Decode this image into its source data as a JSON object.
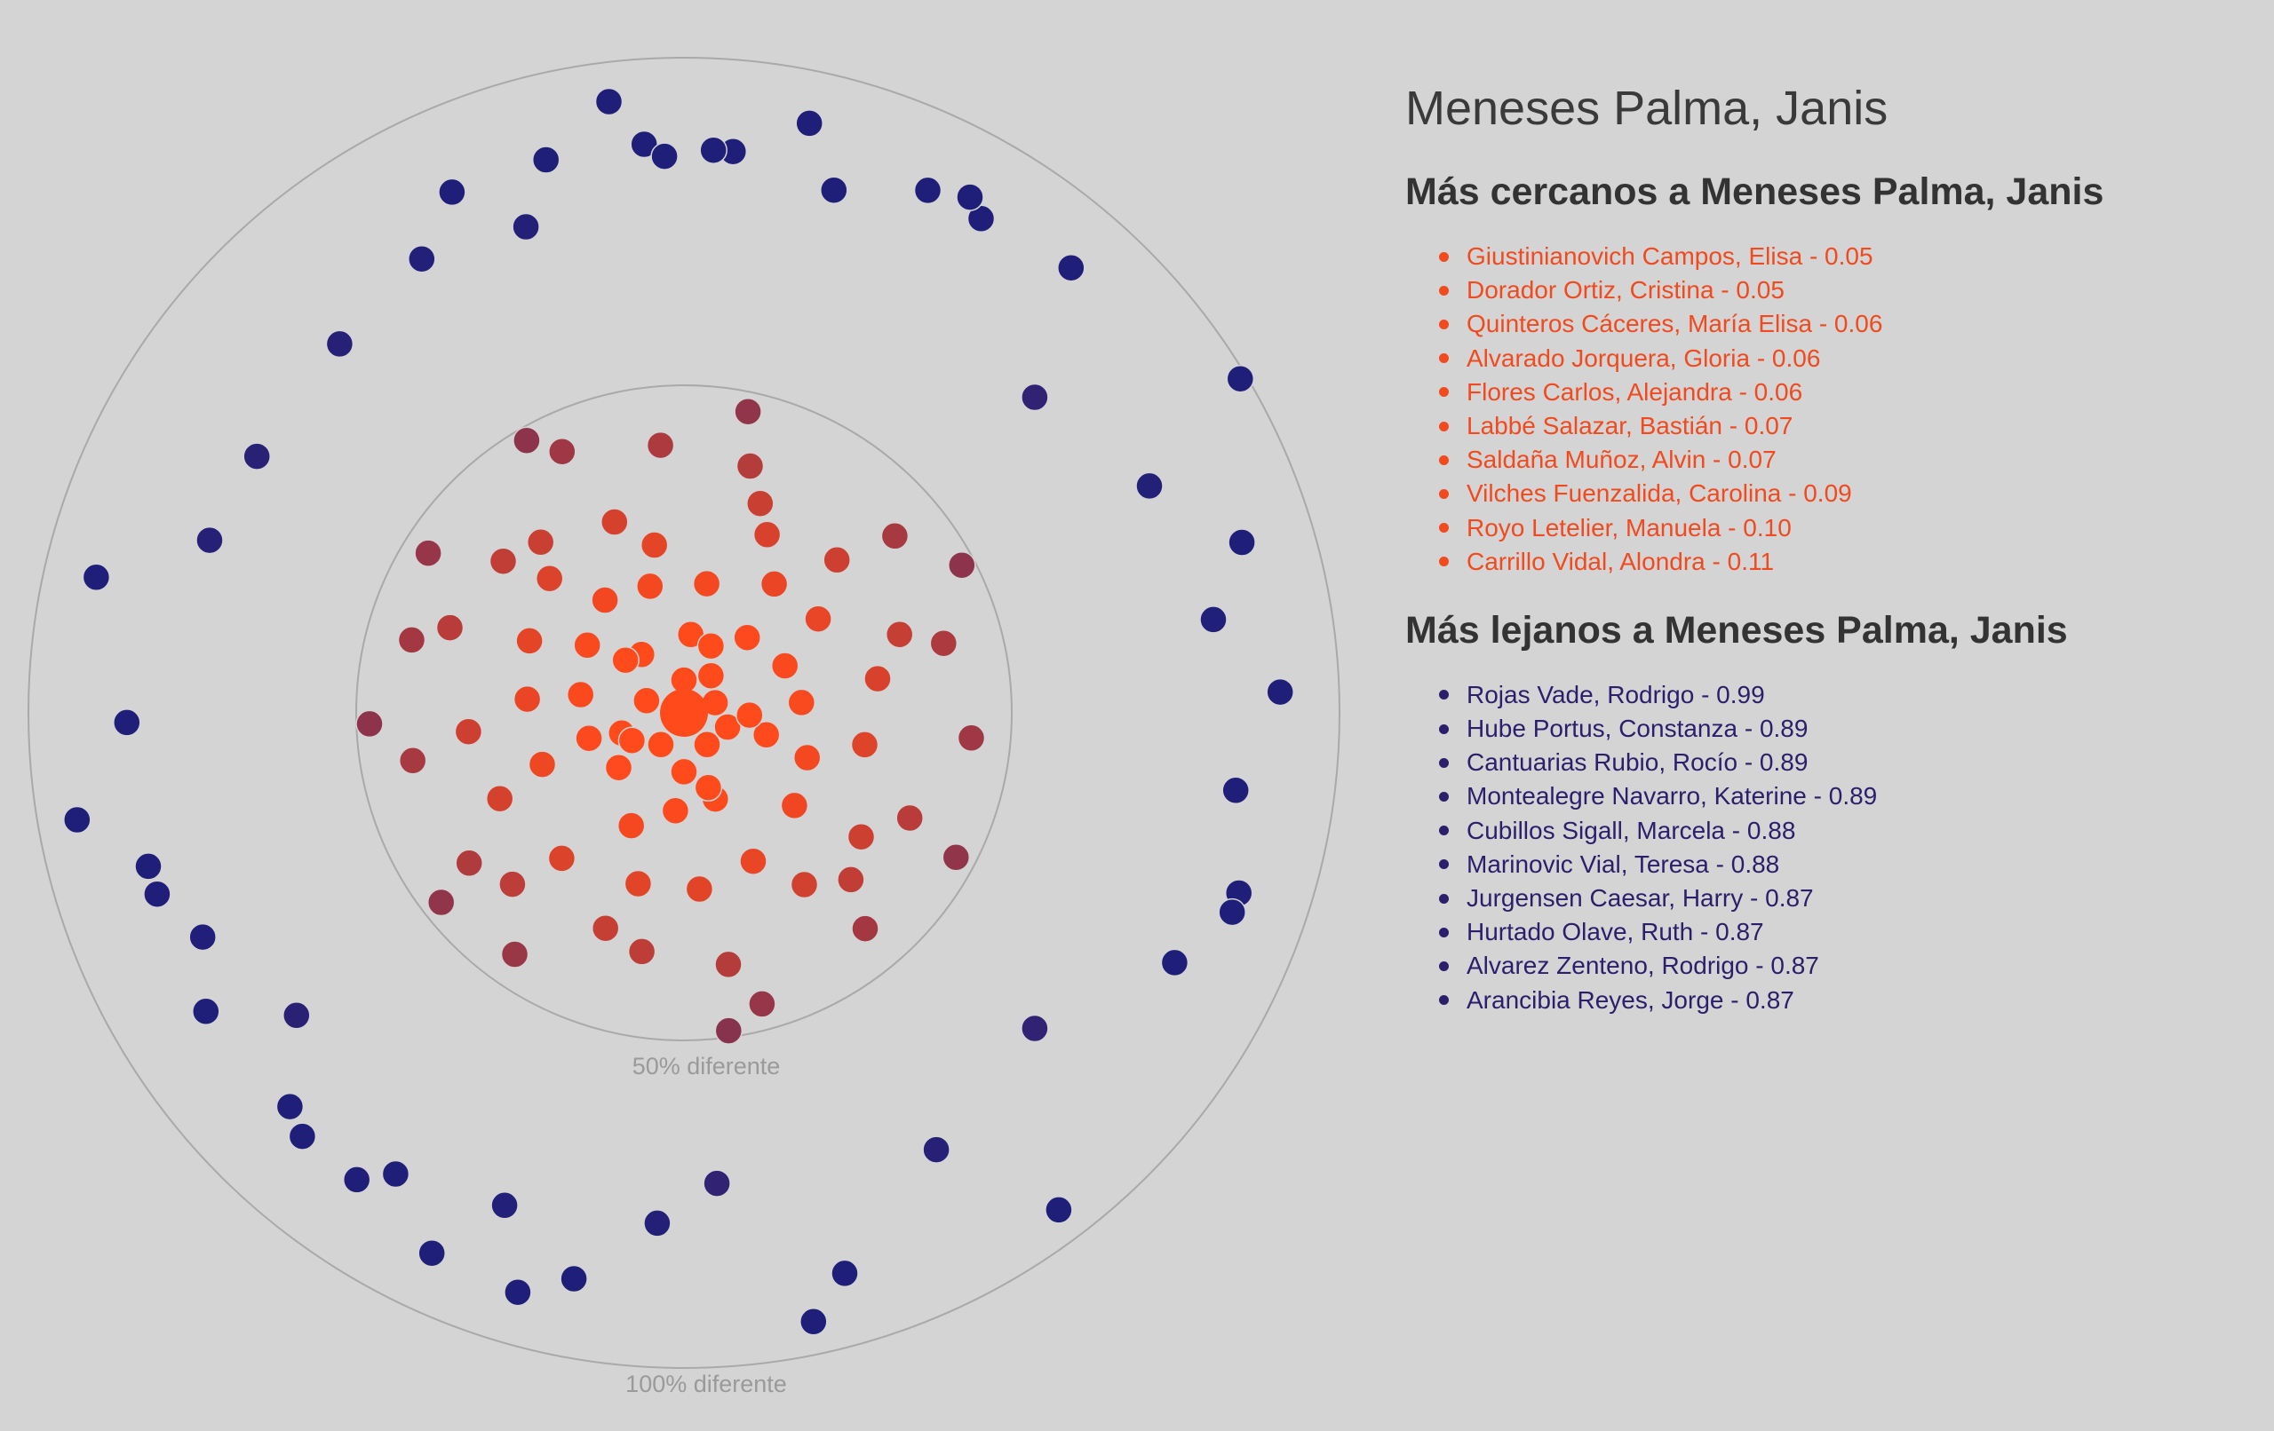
{
  "person": "Meneses Palma, Janis",
  "closest_heading": "Más cercanos a Meneses Palma, Janis",
  "farthest_heading": "Más lejanos a Meneses Palma, Janis",
  "colors": {
    "near": "#ff4a1c",
    "far": "#1f1f7a",
    "rings": "#a9a9a9",
    "background": "#d4d4d4"
  },
  "closest": [
    {
      "name": "Giustinianovich Campos, Elisa",
      "distance": "0.05"
    },
    {
      "name": "Dorador Ortiz, Cristina",
      "distance": "0.05"
    },
    {
      "name": "Quinteros Cáceres, María Elisa",
      "distance": "0.06"
    },
    {
      "name": "Alvarado Jorquera, Gloria",
      "distance": "0.06"
    },
    {
      "name": "Flores Carlos, Alejandra",
      "distance": "0.06"
    },
    {
      "name": "Labbé Salazar, Bastián",
      "distance": "0.07"
    },
    {
      "name": "Saldaña Muñoz, Alvin",
      "distance": "0.07"
    },
    {
      "name": "Vilches Fuenzalida, Carolina",
      "distance": "0.09"
    },
    {
      "name": "Royo Letelier, Manuela",
      "distance": "0.10"
    },
    {
      "name": "Carrillo Vidal, Alondra",
      "distance": "0.11"
    }
  ],
  "farthest": [
    {
      "name": "Rojas Vade, Rodrigo",
      "distance": "0.99"
    },
    {
      "name": "Hube Portus, Constanza",
      "distance": "0.89"
    },
    {
      "name": "Cantuarias Rubio, Rocío",
      "distance": "0.89"
    },
    {
      "name": "Montealegre Navarro, Katerine",
      "distance": "0.89"
    },
    {
      "name": "Cubillos Sigall, Marcela",
      "distance": "0.88"
    },
    {
      "name": "Marinovic Vial, Teresa",
      "distance": "0.88"
    },
    {
      "name": "Jurgensen Caesar, Harry",
      "distance": "0.87"
    },
    {
      "name": "Hurtado Olave, Ruth",
      "distance": "0.87"
    },
    {
      "name": "Alvarez Zenteno, Rodrigo",
      "distance": "0.87"
    },
    {
      "name": "Arancibia Reyes, Jorge",
      "distance": "0.87"
    }
  ],
  "chart_data": {
    "type": "scatter",
    "coordinate_system": "polar",
    "radius_meaning": "distance (0 = identical, 1 = 100% different)",
    "rings": [
      {
        "distance": 0.5,
        "label": "50% diferente"
      },
      {
        "distance": 1.0,
        "label": "100% diferente"
      }
    ],
    "center": {
      "name": "Meneses Palma, Janis",
      "distance": 0.0
    },
    "color_scale": {
      "from": "#ff4a1c",
      "to": "#1f1f7a",
      "domain": [
        0,
        1
      ]
    },
    "points": [
      {
        "angle_deg": 59,
        "distance": 0.99
      },
      {
        "angle_deg": 73,
        "distance": 0.89
      },
      {
        "angle_deg": 108,
        "distance": 0.89
      },
      {
        "angle_deg": 164,
        "distance": 0.89
      },
      {
        "angle_deg": 191,
        "distance": 0.88
      },
      {
        "angle_deg": 25,
        "distance": 0.88
      },
      {
        "angle_deg": 336,
        "distance": 0.87
      },
      {
        "angle_deg": 346,
        "distance": 0.87
      },
      {
        "angle_deg": 215,
        "distance": 0.87
      },
      {
        "angle_deg": 222,
        "distance": 0.87
      },
      {
        "angle_deg": 16,
        "distance": 0.83
      },
      {
        "angle_deg": 356,
        "distance": 0.87
      },
      {
        "angle_deg": 5,
        "distance": 0.86
      },
      {
        "angle_deg": 3,
        "distance": 0.86
      },
      {
        "angle_deg": 358,
        "distance": 0.85
      },
      {
        "angle_deg": 342,
        "distance": 0.78
      },
      {
        "angle_deg": 330,
        "distance": 0.8
      },
      {
        "angle_deg": 317,
        "distance": 0.77
      },
      {
        "angle_deg": 301,
        "distance": 0.76
      },
      {
        "angle_deg": 290,
        "distance": 0.77
      },
      {
        "angle_deg": 254,
        "distance": 0.85
      },
      {
        "angle_deg": 251,
        "distance": 0.85
      },
      {
        "angle_deg": 245,
        "distance": 0.81
      },
      {
        "angle_deg": 232,
        "distance": 0.75
      },
      {
        "angle_deg": 212,
        "distance": 0.83
      },
      {
        "angle_deg": 200,
        "distance": 0.8
      },
      {
        "angle_deg": 183,
        "distance": 0.78
      },
      {
        "angle_deg": 176,
        "distance": 0.72
      },
      {
        "angle_deg": 150,
        "distance": 0.77
      },
      {
        "angle_deg": 132,
        "distance": 0.72
      },
      {
        "angle_deg": 117,
        "distance": 0.84
      },
      {
        "angle_deg": 98,
        "distance": 0.85
      },
      {
        "angle_deg": 80,
        "distance": 0.82
      },
      {
        "angle_deg": 64,
        "distance": 0.79
      },
      {
        "angle_deg": 48,
        "distance": 0.72
      },
      {
        "angle_deg": 283,
        "distance": 0.92
      },
      {
        "angle_deg": 269,
        "distance": 0.85
      },
      {
        "angle_deg": 260,
        "distance": 0.94
      },
      {
        "angle_deg": 238,
        "distance": 0.86
      },
      {
        "angle_deg": 225,
        "distance": 0.85
      },
      {
        "angle_deg": 196,
        "distance": 0.92
      },
      {
        "angle_deg": 168,
        "distance": 0.95
      },
      {
        "angle_deg": 143,
        "distance": 0.95
      },
      {
        "angle_deg": 110,
        "distance": 0.89
      },
      {
        "angle_deg": 88,
        "distance": 0.91
      },
      {
        "angle_deg": 41,
        "distance": 0.9
      },
      {
        "angle_deg": 31,
        "distance": 0.88
      },
      {
        "angle_deg": 29,
        "distance": 0.9
      },
      {
        "angle_deg": 205,
        "distance": 0.91
      },
      {
        "angle_deg": 12,
        "distance": 0.92
      },
      {
        "angle_deg": 353,
        "distance": 0.94
      },
      {
        "angle_deg": 0,
        "distance": 0.05
      },
      {
        "angle_deg": 72,
        "distance": 0.05
      },
      {
        "angle_deg": 144,
        "distance": 0.06
      },
      {
        "angle_deg": 216,
        "distance": 0.06
      },
      {
        "angle_deg": 288,
        "distance": 0.06
      },
      {
        "angle_deg": 36,
        "distance": 0.07
      },
      {
        "angle_deg": 108,
        "distance": 0.07
      },
      {
        "angle_deg": 180,
        "distance": 0.09
      },
      {
        "angle_deg": 252,
        "distance": 0.1
      },
      {
        "angle_deg": 324,
        "distance": 0.11
      },
      {
        "angle_deg": 10,
        "distance": 0.2
      },
      {
        "angle_deg": 25,
        "distance": 0.3
      },
      {
        "angle_deg": 40,
        "distance": 0.15
      },
      {
        "angle_deg": 55,
        "distance": 0.25
      },
      {
        "angle_deg": 70,
        "distance": 0.35
      },
      {
        "angle_deg": 85,
        "distance": 0.18
      },
      {
        "angle_deg": 100,
        "distance": 0.28
      },
      {
        "angle_deg": 115,
        "distance": 0.38
      },
      {
        "angle_deg": 130,
        "distance": 0.22
      },
      {
        "angle_deg": 145,
        "distance": 0.32
      },
      {
        "angle_deg": 160,
        "distance": 0.14
      },
      {
        "angle_deg": 175,
        "distance": 0.27
      },
      {
        "angle_deg": 190,
        "distance": 0.37
      },
      {
        "angle_deg": 205,
        "distance": 0.19
      },
      {
        "angle_deg": 220,
        "distance": 0.29
      },
      {
        "angle_deg": 235,
        "distance": 0.4
      },
      {
        "angle_deg": 250,
        "distance": 0.23
      },
      {
        "angle_deg": 265,
        "distance": 0.33
      },
      {
        "angle_deg": 280,
        "distance": 0.16
      },
      {
        "angle_deg": 295,
        "distance": 0.26
      },
      {
        "angle_deg": 310,
        "distance": 0.36
      },
      {
        "angle_deg": 325,
        "distance": 0.21
      },
      {
        "angle_deg": 340,
        "distance": 0.31
      },
      {
        "angle_deg": 355,
        "distance": 0.41
      },
      {
        "angle_deg": 5,
        "distance": 0.12
      },
      {
        "angle_deg": 20,
        "distance": 0.34
      },
      {
        "angle_deg": 35,
        "distance": 0.24
      },
      {
        "angle_deg": 50,
        "distance": 0.42
      },
      {
        "angle_deg": 65,
        "distance": 0.17
      },
      {
        "angle_deg": 80,
        "distance": 0.3
      },
      {
        "angle_deg": 95,
        "distance": 0.44
      },
      {
        "angle_deg": 110,
        "distance": 0.2
      },
      {
        "angle_deg": 125,
        "distance": 0.33
      },
      {
        "angle_deg": 140,
        "distance": 0.43
      },
      {
        "angle_deg": 155,
        "distance": 0.25
      },
      {
        "angle_deg": 170,
        "distance": 0.39
      },
      {
        "angle_deg": 185,
        "distance": 0.15
      },
      {
        "angle_deg": 200,
        "distance": 0.35
      },
      {
        "angle_deg": 215,
        "distance": 0.45
      },
      {
        "angle_deg": 230,
        "distance": 0.13
      },
      {
        "angle_deg": 245,
        "distance": 0.31
      },
      {
        "angle_deg": 260,
        "distance": 0.42
      },
      {
        "angle_deg": 275,
        "distance": 0.24
      },
      {
        "angle_deg": 290,
        "distance": 0.38
      },
      {
        "angle_deg": 305,
        "distance": 0.18
      },
      {
        "angle_deg": 320,
        "distance": 0.34
      },
      {
        "angle_deg": 335,
        "distance": 0.44
      },
      {
        "angle_deg": 350,
        "distance": 0.26
      },
      {
        "angle_deg": 15,
        "distance": 0.39
      },
      {
        "angle_deg": 45,
        "distance": 0.33
      },
      {
        "angle_deg": 75,
        "distance": 0.41
      },
      {
        "angle_deg": 105,
        "distance": 0.13
      },
      {
        "angle_deg": 135,
        "distance": 0.36
      },
      {
        "angle_deg": 165,
        "distance": 0.46
      },
      {
        "angle_deg": 195,
        "distance": 0.27
      },
      {
        "angle_deg": 225,
        "distance": 0.37
      },
      {
        "angle_deg": 255,
        "distance": 0.15
      },
      {
        "angle_deg": 285,
        "distance": 0.43
      },
      {
        "angle_deg": 315,
        "distance": 0.29
      },
      {
        "angle_deg": 345,
        "distance": 0.2
      },
      {
        "angle_deg": 12,
        "distance": 0.47
      },
      {
        "angle_deg": 62,
        "distance": 0.48
      },
      {
        "angle_deg": 118,
        "distance": 0.47
      },
      {
        "angle_deg": 172,
        "distance": 0.49
      },
      {
        "angle_deg": 232,
        "distance": 0.47
      },
      {
        "angle_deg": 268,
        "distance": 0.48
      },
      {
        "angle_deg": 302,
        "distance": 0.46
      },
      {
        "angle_deg": 330,
        "distance": 0.48
      },
      {
        "angle_deg": 22,
        "distance": 0.11
      },
      {
        "angle_deg": 92,
        "distance": 0.1
      },
      {
        "angle_deg": 162,
        "distance": 0.12
      },
      {
        "angle_deg": 242,
        "distance": 0.09
      },
      {
        "angle_deg": 312,
        "distance": 0.12
      }
    ]
  }
}
